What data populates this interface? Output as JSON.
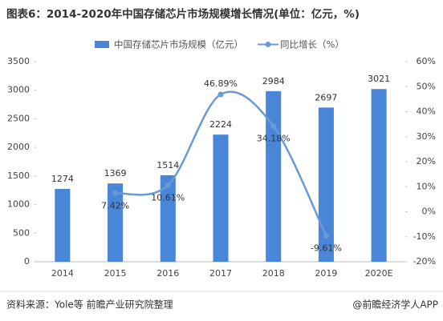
{
  "chart_data": {
    "type": "bar",
    "title": "图表6：2014-2020年中国存储芯片市场规模增长情况(单位：亿元，%)",
    "categories": [
      "2014",
      "2015",
      "2016",
      "2017",
      "2018",
      "2019",
      "2020E"
    ],
    "series": [
      {
        "name": "中国存储芯片市场规模（亿元）",
        "type": "bar",
        "color": "#4a86d8",
        "values": [
          1274,
          1369,
          1514,
          2224,
          2984,
          2697,
          3021
        ]
      },
      {
        "name": "同比增长（%）",
        "type": "line",
        "axis": "y2",
        "color": "#6a9ad6",
        "values": [
          null,
          7.42,
          10.61,
          46.89,
          34.18,
          -9.61,
          null
        ],
        "value_labels": [
          null,
          "7.42%",
          "10.61%",
          "46.89%",
          "34.18%",
          "-9.61%",
          null
        ]
      }
    ],
    "ylim": [
      0,
      3500
    ],
    "yticks": [
      0,
      500,
      1000,
      1500,
      2000,
      2500,
      3000,
      3500
    ],
    "y2lim": [
      -20,
      60
    ],
    "y2ticks": [
      {
        "value": -20,
        "label": "-20%"
      },
      {
        "value": -10,
        "label": "-10%"
      },
      {
        "value": 0,
        "label": "0%"
      },
      {
        "value": 10,
        "label": "10%"
      },
      {
        "value": 20,
        "label": "20%"
      },
      {
        "value": 30,
        "label": "30%"
      },
      {
        "value": 40,
        "label": "40%"
      },
      {
        "value": 50,
        "label": "50%"
      },
      {
        "value": 60,
        "label": "60%"
      }
    ],
    "legend": "top",
    "footer_left": "资料来源：Yole等 前瞻产业研究院整理",
    "footer_right": "@前瞻经济学人APP"
  }
}
